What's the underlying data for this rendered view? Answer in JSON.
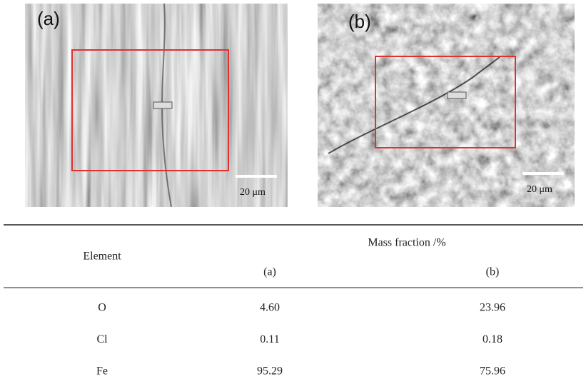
{
  "panels": [
    {
      "label": "(a)",
      "scale": "20 μm"
    },
    {
      "label": "(b)",
      "scale": "20 μm"
    }
  ],
  "table": {
    "header": {
      "element": "Element",
      "group": "Mass fraction /%",
      "columns": [
        "(a)",
        "(b)"
      ]
    },
    "rows": [
      [
        "O",
        "4.60",
        "23.96"
      ],
      [
        "Cl",
        "0.11",
        "0.18"
      ],
      [
        "Fe",
        "95.29",
        "75.96"
      ]
    ]
  }
}
